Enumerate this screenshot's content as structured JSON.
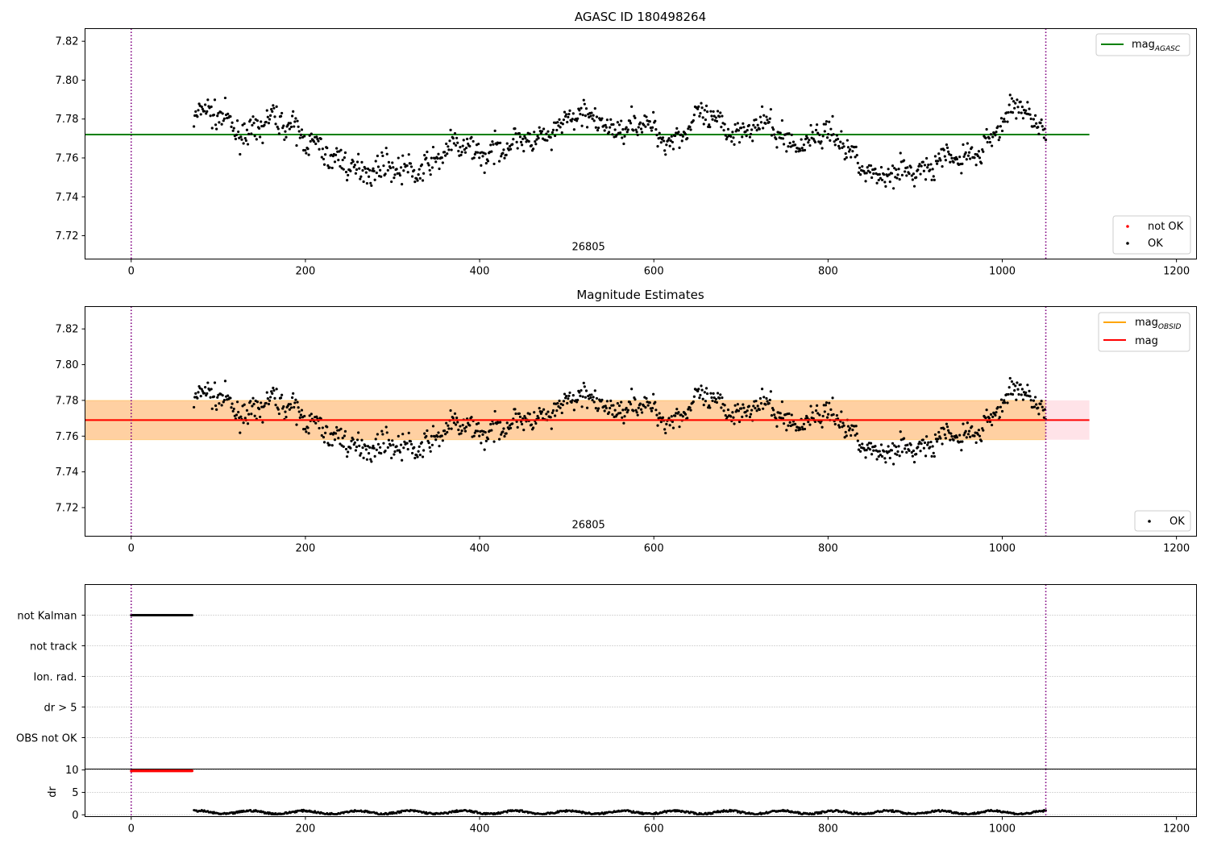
{
  "chart_data": [
    {
      "type": "scatter",
      "title": "AGASC ID 180498264",
      "xlim": [
        -53,
        1223
      ],
      "ylim": [
        7.708,
        7.8265
      ],
      "xticks": [
        0,
        200,
        400,
        600,
        800,
        1000,
        1200
      ],
      "yticks": [
        7.72,
        7.74,
        7.76,
        7.78,
        7.8,
        7.82
      ],
      "grid": false,
      "vlines": [
        0,
        1050
      ],
      "obsid_label": {
        "text": "26805",
        "x": 525,
        "y": 7.7125
      },
      "hline": {
        "name": "mag_AGASC",
        "value": 7.772,
        "x_range": [
          -53,
          1100
        ],
        "color": "#008000"
      },
      "series": [
        {
          "name": "not OK",
          "color": "#ff0000",
          "n": 0
        },
        {
          "name": "OK",
          "color": "#000000",
          "x_range": [
            72,
            1050
          ],
          "n": 980,
          "anchors_x": [
            72,
            110,
            140,
            170,
            195,
            230,
            270,
            310,
            350,
            400,
            450,
            490,
            530,
            580,
            620,
            650,
            700,
            760,
            800,
            830,
            860,
            900,
            950,
            1000,
            1020,
            1050
          ],
          "anchors_y": [
            7.781,
            7.78,
            7.773,
            7.778,
            7.776,
            7.756,
            7.757,
            7.751,
            7.761,
            7.765,
            7.766,
            7.777,
            7.78,
            7.775,
            7.772,
            7.778,
            7.777,
            7.77,
            7.77,
            7.765,
            7.747,
            7.756,
            7.757,
            7.777,
            7.785,
            7.778
          ]
        }
      ],
      "legend": [
        {
          "label": "mag",
          "sub": "AGASC",
          "kind": "line",
          "color": "#008000",
          "position": "top-right"
        },
        {
          "label": "not OK",
          "kind": "marker",
          "color": "#ff0000",
          "position": "bottom-right"
        },
        {
          "label": "OK",
          "kind": "marker",
          "color": "#000000",
          "position": "bottom-right"
        }
      ]
    },
    {
      "type": "scatter",
      "title": "Magnitude Estimates",
      "xlim": [
        -53,
        1223
      ],
      "ylim": [
        7.704,
        7.8325
      ],
      "xticks": [
        0,
        200,
        400,
        600,
        800,
        1000,
        1200
      ],
      "yticks": [
        7.72,
        7.74,
        7.76,
        7.78,
        7.8,
        7.82
      ],
      "grid": false,
      "vlines": [
        0,
        1050
      ],
      "obsid_label": {
        "text": "26805",
        "x": 525,
        "y": 7.7085
      },
      "bands": [
        {
          "name": "mag range",
          "y_range": [
            7.758,
            7.78
          ],
          "x_range": [
            -53,
            1100
          ],
          "color": "#ffc0cb",
          "opacity": 0.45
        },
        {
          "name": "mag_OBSID range",
          "y_range": [
            7.758,
            7.78
          ],
          "x_range": [
            -53,
            1050
          ],
          "color": "#ffa500",
          "opacity": 0.3
        }
      ],
      "hlines": [
        {
          "name": "mag_OBSID",
          "value": 7.769,
          "x_range": [
            -53,
            1050
          ],
          "color": "#ffa500"
        },
        {
          "name": "mag",
          "value": 7.769,
          "x_range": [
            -53,
            1100
          ],
          "color": "#ff0000"
        }
      ],
      "series": [
        {
          "name": "OK",
          "color": "#000000",
          "same_as": "panel 1"
        }
      ],
      "legend": [
        {
          "label": "mag",
          "sub": "OBSID",
          "kind": "line",
          "color": "#ffa500",
          "position": "top-right"
        },
        {
          "label": "mag",
          "sub": "",
          "kind": "line",
          "color": "#ff0000",
          "position": "top-right"
        },
        {
          "label": "OK",
          "kind": "marker",
          "color": "#000000",
          "position": "bottom-right"
        }
      ]
    },
    {
      "type": "scatter",
      "title": "",
      "xlim": [
        -53,
        1223
      ],
      "xticks": [
        0,
        200,
        400,
        600,
        800,
        1000,
        1200
      ],
      "vlines": [
        0,
        1050
      ],
      "flag_rows": [
        "not Kalman",
        "not track",
        "Ion. rad.",
        "dr > 5",
        "OBS not OK"
      ],
      "flag_series": [
        {
          "row": "not Kalman",
          "x_range": [
            0,
            70
          ],
          "color": "#000000",
          "n": 70
        }
      ],
      "grid": "horizontal dotted"
    },
    {
      "type": "scatter",
      "title": "",
      "ylabel": "dr",
      "xlim": [
        -53,
        1223
      ],
      "ylim": [
        -0.4,
        10.2
      ],
      "yticks": [
        0,
        5,
        10
      ],
      "xticks": [
        0,
        200,
        400,
        600,
        800,
        1000,
        1200
      ],
      "vlines": [
        0,
        1050
      ],
      "series": [
        {
          "name": "dr",
          "x_range": [
            0,
            70
          ],
          "value": 9.8,
          "color": "#ff0000",
          "n": 70
        },
        {
          "name": "dr",
          "x_range": [
            72,
            1050
          ],
          "value_range": [
            0.1,
            1.2
          ],
          "color": "#000000",
          "n": 980
        }
      ]
    }
  ]
}
